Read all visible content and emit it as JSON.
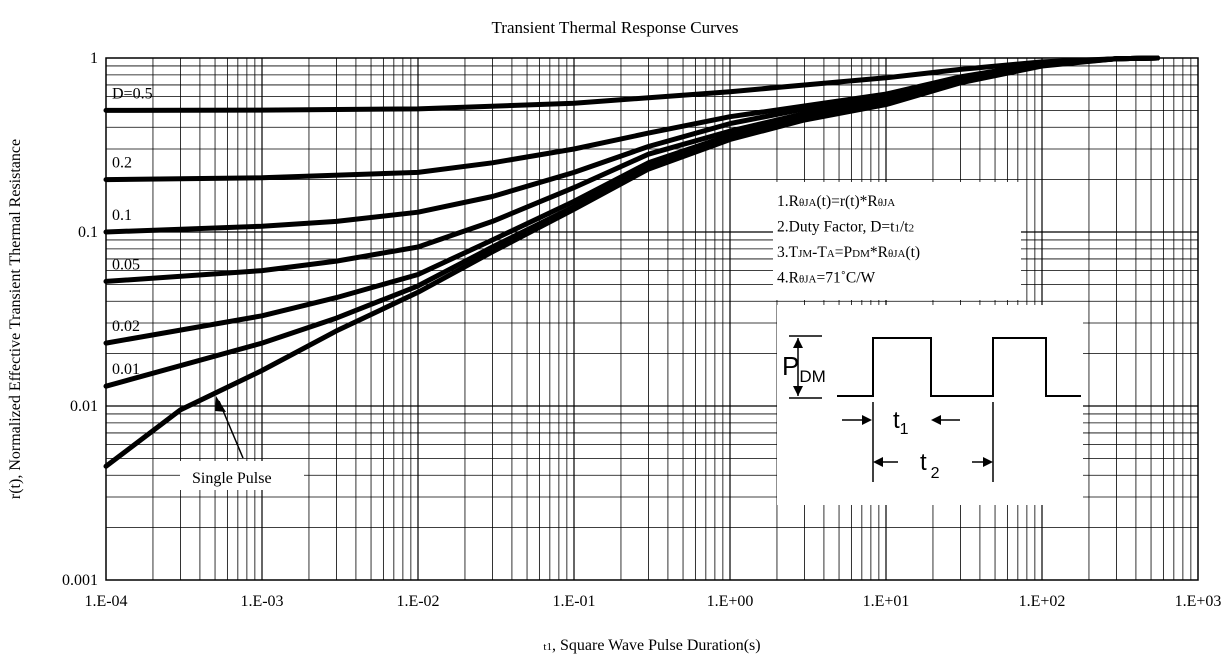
{
  "chart_data": {
    "type": "line",
    "title": "Transient Thermal Response Curves",
    "xlabel": {
      "sub": "t1",
      "rest": ", Square Wave Pulse Duration(s)"
    },
    "ylabel": "r(t), Normalized Effective Transient Thermal Resistance",
    "x_scale": "log",
    "y_scale": "log",
    "xlim": [
      0.0001,
      1000
    ],
    "ylim": [
      0.001,
      1
    ],
    "grid": true,
    "x_ticks": [
      {
        "value": 0.0001,
        "label": "1.E-04"
      },
      {
        "value": 0.001,
        "label": "1.E-03"
      },
      {
        "value": 0.01,
        "label": "1.E-02"
      },
      {
        "value": 0.1,
        "label": "1.E-01"
      },
      {
        "value": 1,
        "label": "1.E+00"
      },
      {
        "value": 10,
        "label": "1.E+01"
      },
      {
        "value": 100,
        "label": "1.E+02"
      },
      {
        "value": 1000,
        "label": "1.E+03"
      }
    ],
    "y_ticks": [
      {
        "value": 0.001,
        "label": "0.001"
      },
      {
        "value": 0.01,
        "label": "0.01"
      },
      {
        "value": 0.1,
        "label": "0.1"
      },
      {
        "value": 1,
        "label": "1"
      }
    ],
    "series": [
      {
        "name": "D=0.5",
        "x": [
          0.0001,
          0.001,
          0.01,
          0.1,
          1,
          3,
          10,
          30,
          100,
          300,
          550
        ],
        "y": [
          0.5,
          0.502,
          0.51,
          0.55,
          0.64,
          0.7,
          0.77,
          0.86,
          0.95,
          0.99,
          1.0
        ]
      },
      {
        "name": "0.2",
        "x": [
          0.0001,
          0.001,
          0.01,
          0.03,
          0.1,
          0.3,
          1,
          3,
          10,
          30,
          100,
          300,
          550
        ],
        "y": [
          0.2,
          0.205,
          0.22,
          0.25,
          0.3,
          0.37,
          0.46,
          0.53,
          0.62,
          0.78,
          0.93,
          0.99,
          1.0
        ]
      },
      {
        "name": "0.1",
        "x": [
          0.0001,
          0.001,
          0.003,
          0.01,
          0.03,
          0.1,
          0.3,
          1,
          3,
          10,
          30,
          100,
          300,
          550
        ],
        "y": [
          0.1,
          0.108,
          0.115,
          0.13,
          0.16,
          0.22,
          0.31,
          0.42,
          0.51,
          0.6,
          0.77,
          0.93,
          0.99,
          1.0
        ]
      },
      {
        "name": "0.05",
        "x": [
          0.0001,
          0.001,
          0.003,
          0.01,
          0.03,
          0.1,
          0.3,
          1,
          3,
          10,
          30,
          100,
          300,
          550
        ],
        "y": [
          0.052,
          0.06,
          0.068,
          0.082,
          0.115,
          0.18,
          0.28,
          0.38,
          0.48,
          0.57,
          0.75,
          0.92,
          0.99,
          1.0
        ]
      },
      {
        "name": "0.02",
        "x": [
          0.0001,
          0.001,
          0.003,
          0.01,
          0.03,
          0.1,
          0.3,
          1,
          3,
          10,
          30,
          100,
          300,
          550
        ],
        "y": [
          0.023,
          0.033,
          0.042,
          0.057,
          0.09,
          0.15,
          0.25,
          0.36,
          0.46,
          0.56,
          0.74,
          0.92,
          0.99,
          1.0
        ]
      },
      {
        "name": "0.01",
        "x": [
          0.0001,
          0.001,
          0.003,
          0.01,
          0.03,
          0.1,
          0.3,
          1,
          3,
          10,
          30,
          100,
          300,
          550
        ],
        "y": [
          0.013,
          0.023,
          0.032,
          0.049,
          0.082,
          0.14,
          0.24,
          0.35,
          0.45,
          0.55,
          0.73,
          0.91,
          0.99,
          1.0
        ]
      },
      {
        "name": "Single Pulse",
        "x": [
          0.0001,
          0.0003,
          0.001,
          0.003,
          0.01,
          0.03,
          0.1,
          0.3,
          1,
          3,
          10,
          30,
          100,
          300,
          550
        ],
        "y": [
          0.0045,
          0.0095,
          0.016,
          0.027,
          0.045,
          0.077,
          0.135,
          0.23,
          0.34,
          0.44,
          0.54,
          0.72,
          0.9,
          0.99,
          1.0
        ]
      }
    ],
    "annotations": {
      "single_pulse_label": "Single Pulse",
      "notes": [
        [
          {
            "t": "1.R"
          },
          {
            "t": "θ",
            "size": "sub"
          },
          {
            "t": "JA",
            "size": "sub"
          },
          {
            "t": "(t)=r(t)*R"
          },
          {
            "t": "θ",
            "size": "sub"
          },
          {
            "t": "JA",
            "size": "sub"
          }
        ],
        [
          {
            "t": "2.Duty Factor, D=t"
          },
          {
            "t": "1",
            "size": "sub"
          },
          {
            "t": "/t"
          },
          {
            "t": "2",
            "size": "sub"
          }
        ],
        [
          {
            "t": "3.T"
          },
          {
            "t": "JM",
            "size": "sub"
          },
          {
            "t": "-T"
          },
          {
            "t": "A",
            "size": "sub"
          },
          {
            "t": "=P"
          },
          {
            "t": "DM",
            "size": "sub"
          },
          {
            "t": "*R"
          },
          {
            "t": "θ",
            "size": "sub"
          },
          {
            "t": "JA",
            "size": "sub"
          },
          {
            "t": "(t)"
          }
        ],
        [
          {
            "t": "4.R"
          },
          {
            "t": "θ",
            "size": "sub"
          },
          {
            "t": "JA",
            "size": "sub"
          },
          {
            "t": "=71˚C/W"
          }
        ]
      ],
      "waveform": {
        "p_label": "P",
        "p_sub": "DM",
        "t1_label": "t",
        "t1_sub": "1",
        "t2_label": "t",
        "t2_sub": "2"
      }
    }
  }
}
